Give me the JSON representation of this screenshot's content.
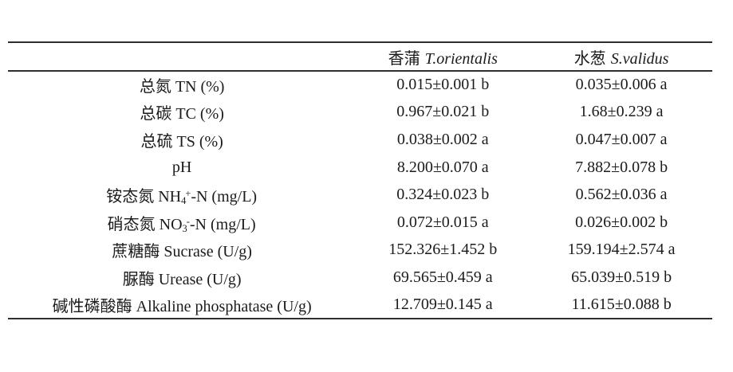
{
  "table": {
    "text_color": "#1b1b1b",
    "rule_color": "#2e2e2e",
    "columns": [
      {
        "cn": "",
        "latin": ""
      },
      {
        "cn": "香蒲",
        "latin": "T.orientalis"
      },
      {
        "cn": "水葱",
        "latin": "S.validus"
      }
    ],
    "rows": [
      {
        "label": {
          "p1": "总氮 TN (%)",
          "sub": "",
          "sup": "",
          "p2": ""
        },
        "values": [
          "0.015±0.001 b",
          "0.035±0.006 a"
        ]
      },
      {
        "label": {
          "p1": "总碳 TC (%)",
          "sub": "",
          "sup": "",
          "p2": ""
        },
        "values": [
          "0.967±0.021 b",
          "1.68±0.239 a"
        ]
      },
      {
        "label": {
          "p1": "总硫 TS (%)",
          "sub": "",
          "sup": "",
          "p2": ""
        },
        "values": [
          "0.038±0.002 a",
          "0.047±0.007 a"
        ]
      },
      {
        "label": {
          "p1": "pH",
          "sub": "",
          "sup": "",
          "p2": ""
        },
        "values": [
          "8.200±0.070 a",
          "7.882±0.078 b"
        ]
      },
      {
        "label": {
          "p1": "铵态氮 NH",
          "sub": "4",
          "sup": "+",
          "p2": "-N (mg/L)"
        },
        "values": [
          "0.324±0.023 b",
          "0.562±0.036 a"
        ]
      },
      {
        "label": {
          "p1": "硝态氮 NO",
          "sub": "3",
          "sup": "-",
          "p2": "-N (mg/L)"
        },
        "values": [
          "0.072±0.015 a",
          "0.026±0.002 b"
        ]
      },
      {
        "label": {
          "p1": "蔗糖酶 Sucrase (U/g)",
          "sub": "",
          "sup": "",
          "p2": ""
        },
        "values": [
          "152.326±1.452 b",
          "159.194±2.574 a"
        ]
      },
      {
        "label": {
          "p1": "脲酶 Urease (U/g)",
          "sub": "",
          "sup": "",
          "p2": ""
        },
        "values": [
          "69.565±0.459 a",
          "65.039±0.519 b"
        ]
      },
      {
        "label": {
          "p1": "碱性磷酸酶 Alkaline phosphatase (U/g)",
          "sub": "",
          "sup": "",
          "p2": ""
        },
        "values": [
          "12.709±0.145 a",
          "11.615±0.088 b"
        ]
      }
    ]
  }
}
